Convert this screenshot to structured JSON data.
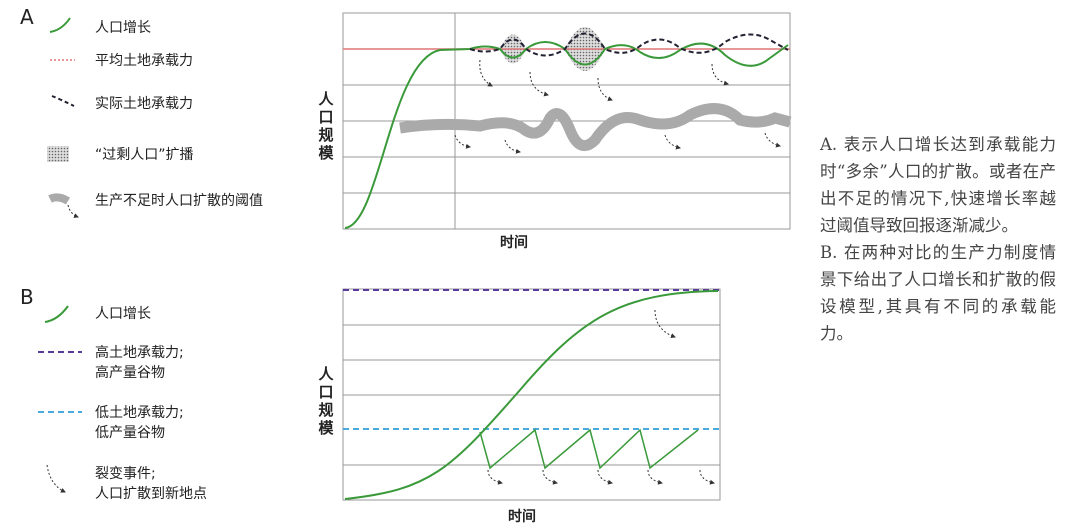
{
  "panel_a": {
    "label": "A",
    "legend": [
      [
        "人口增长"
      ],
      [
        "平均土地承载力"
      ],
      [
        "实际土地承载力"
      ],
      [
        "“过剩人口”扩播"
      ],
      [
        "生产不足时人口扩散的阈值"
      ]
    ],
    "y_label": "人口规模",
    "x_label": "时间"
  },
  "panel_b": {
    "label": "B",
    "legend": [
      [
        "人口增长"
      ],
      [
        "高土地承载力;",
        "高产量谷物"
      ],
      [
        "低土地承载力;",
        "低产量谷物"
      ],
      [
        "裂变事件;",
        "人口扩散到新地点"
      ]
    ],
    "y_label": "人口规模",
    "x_label": "时间"
  },
  "caption": [
    "A. 表示人口增长达到承载能力时“多余”人口的扩散。或者在产出不足的情况下,快速增长率越过阈值导致回报逐渐减少。",
    "B. 在两种对比的生产力制度情景下给出了人口增长和扩散的假设模型,其具有不同的承载能力。"
  ]
}
